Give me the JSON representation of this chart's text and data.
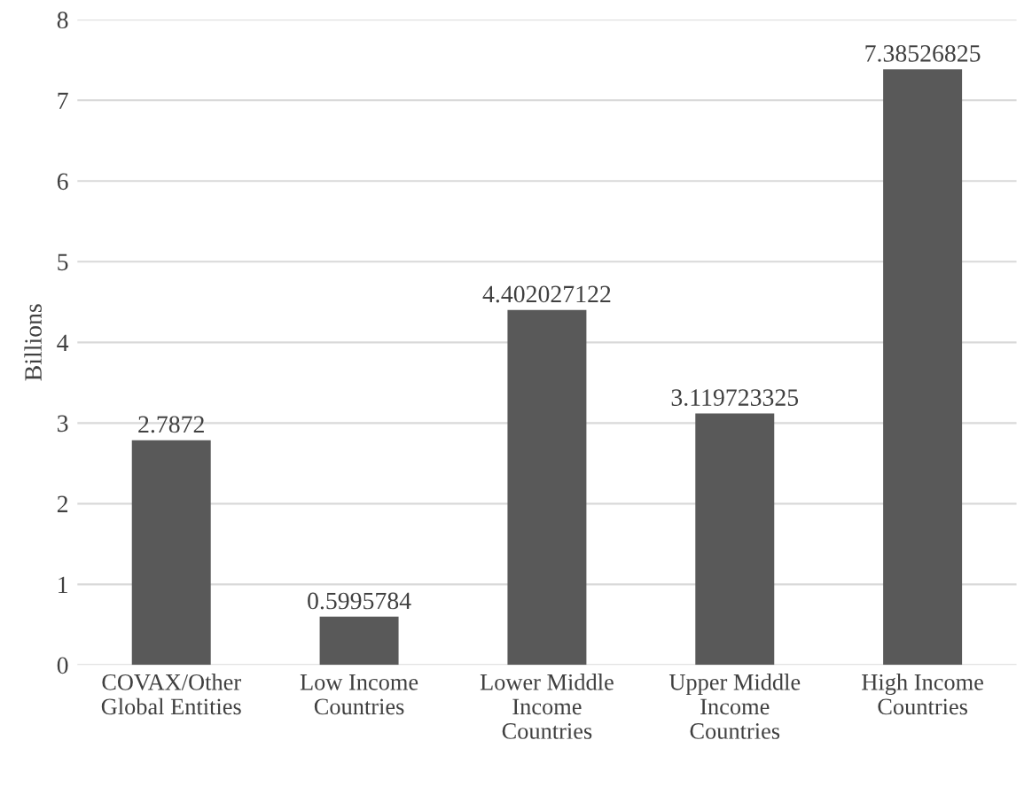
{
  "chart_data": {
    "type": "bar",
    "ylabel": "Billions",
    "categories": [
      "COVAX/Other\nGlobal Entities",
      "Low Income\nCountries",
      "Lower Middle\nIncome\nCountries",
      "Upper Middle\nIncome\nCountries",
      "High Income\nCountries"
    ],
    "values": [
      2.7872,
      0.5995784,
      4.402027122,
      3.119723325,
      7.38526825
    ],
    "color": "#595959",
    "ylim": [
      0,
      8
    ],
    "yticks": [
      0,
      1,
      2,
      3,
      4,
      5,
      6,
      7,
      8
    ],
    "grid": "y",
    "data_labels": true,
    "legend": false
  }
}
